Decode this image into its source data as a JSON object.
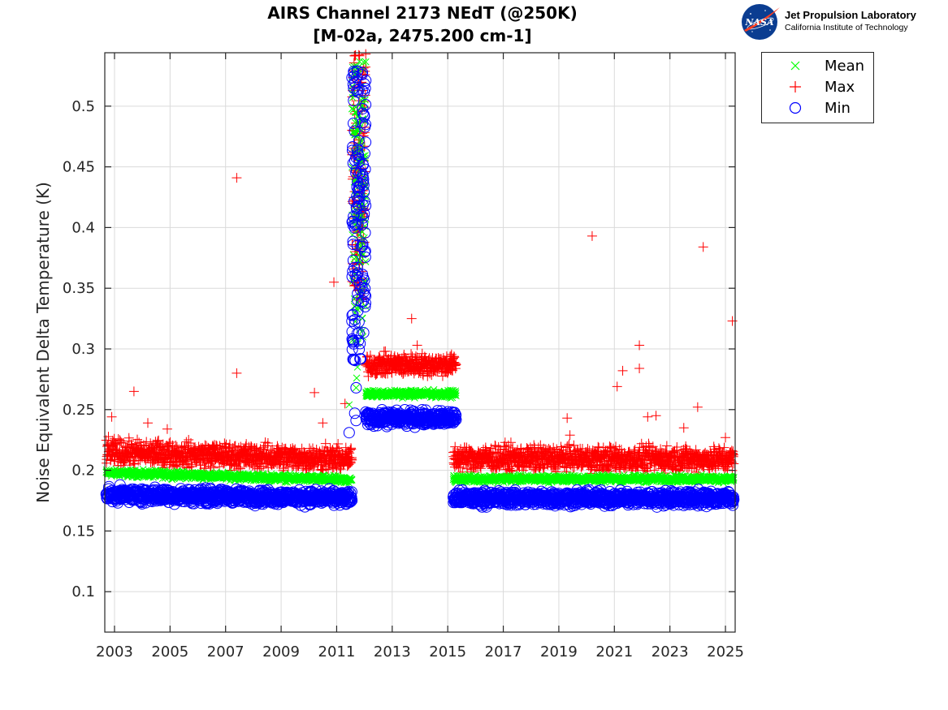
{
  "header": {
    "title_line1": "AIRS Channel 2173 NEdT (@250K)",
    "title_line2": "[M-02a, 2475.200 cm-1]",
    "logo_org": "Jet Propulsion Laboratory",
    "logo_sub": "California Institute of Technology",
    "logo_mark": "NASA"
  },
  "colors": {
    "mean": "#00ff00",
    "max": "#ff0000",
    "min": "#0000ff",
    "grid": "#dadada",
    "axis": "#262626"
  },
  "chart_data": {
    "type": "scatter",
    "title": "AIRS Channel 2173 NEdT (@250K) [M-02a, 2475.200 cm-1]",
    "xlabel": "",
    "ylabel": "Noise Equivalent Delta Temperature (K)",
    "xlim": [
      2002.65,
      2025.35
    ],
    "ylim": [
      0.0667,
      0.544
    ],
    "grid": true,
    "legend_position": "outside-top-right",
    "x_ticks": [
      2003,
      2005,
      2007,
      2009,
      2011,
      2013,
      2015,
      2017,
      2019,
      2021,
      2023,
      2025
    ],
    "x_tick_labels": [
      "2003",
      "2005",
      "2007",
      "2009",
      "2011",
      "2013",
      "2015",
      "2017",
      "2019",
      "2021",
      "2023",
      "2025"
    ],
    "y_ticks": [
      0.1,
      0.15,
      0.2,
      0.25,
      0.3,
      0.35,
      0.4,
      0.45,
      0.5
    ],
    "y_tick_labels": [
      "0.1",
      "0.15",
      "0.2",
      "0.25",
      "0.3",
      "0.35",
      "0.4",
      "0.45",
      "0.5"
    ],
    "legend": [
      "Mean",
      "Max",
      "Min"
    ],
    "series": [
      {
        "name": "Mean",
        "marker": "x",
        "segments": [
          {
            "x_start": 2002.7,
            "x_end": 2011.55,
            "y_start": 0.198,
            "y_end": 0.192,
            "spread": 0.002
          },
          {
            "x_start": 2012.05,
            "x_end": 2015.3,
            "y_start": 0.263,
            "y_end": 0.263,
            "spread": 0.002
          },
          {
            "x_start": 2015.2,
            "x_end": 2025.3,
            "y_start": 0.193,
            "y_end": 0.193,
            "spread": 0.002
          }
        ],
        "points": [
          [
            2011.45,
            0.254
          ],
          [
            2011.7,
            0.268
          ],
          [
            2011.72,
            0.276
          ],
          [
            2011.75,
            0.285
          ]
        ]
      },
      {
        "name": "Max",
        "marker": "+",
        "segments": [
          {
            "x_start": 2002.7,
            "x_end": 2011.55,
            "y_start": 0.215,
            "y_end": 0.209,
            "spread": 0.007
          },
          {
            "x_start": 2012.05,
            "x_end": 2015.3,
            "y_start": 0.287,
            "y_end": 0.287,
            "spread": 0.006
          },
          {
            "x_start": 2015.2,
            "x_end": 2025.3,
            "y_start": 0.21,
            "y_end": 0.209,
            "spread": 0.007
          }
        ],
        "points": [
          [
            2002.9,
            0.244
          ],
          [
            2003.7,
            0.265
          ],
          [
            2004.2,
            0.239
          ],
          [
            2004.9,
            0.234
          ],
          [
            2007.4,
            0.441
          ],
          [
            2007.4,
            0.28
          ],
          [
            2010.2,
            0.264
          ],
          [
            2010.5,
            0.239
          ],
          [
            2010.6,
            0.222
          ],
          [
            2010.9,
            0.355
          ],
          [
            2011.3,
            0.255
          ],
          [
            2013.7,
            0.325
          ],
          [
            2013.9,
            0.303
          ],
          [
            2019.3,
            0.243
          ],
          [
            2019.4,
            0.229
          ],
          [
            2020.2,
            0.393
          ],
          [
            2021.1,
            0.269
          ],
          [
            2021.3,
            0.282
          ],
          [
            2021.9,
            0.303
          ],
          [
            2021.9,
            0.284
          ],
          [
            2022.2,
            0.244
          ],
          [
            2022.5,
            0.245
          ],
          [
            2023.5,
            0.235
          ],
          [
            2024.0,
            0.252
          ],
          [
            2024.2,
            0.384
          ],
          [
            2025.0,
            0.227
          ],
          [
            2025.25,
            0.323
          ],
          [
            2011.9,
            0.4
          ]
        ]
      },
      {
        "name": "Min",
        "marker": "o",
        "segments": [
          {
            "x_start": 2002.7,
            "x_end": 2011.55,
            "y_start": 0.18,
            "y_end": 0.177,
            "spread": 0.004
          },
          {
            "x_start": 2012.05,
            "x_end": 2015.3,
            "y_start": 0.243,
            "y_end": 0.243,
            "spread": 0.004
          },
          {
            "x_start": 2015.2,
            "x_end": 2025.3,
            "y_start": 0.177,
            "y_end": 0.177,
            "spread": 0.004
          }
        ],
        "points": [
          [
            2011.45,
            0.231
          ],
          [
            2011.65,
            0.247
          ],
          [
            2011.7,
            0.268
          ],
          [
            2011.7,
            0.241
          ]
        ]
      }
    ],
    "spike": {
      "x_start": 2011.45,
      "x_end": 2012.1,
      "mean_range": [
        0.3,
        0.54
      ],
      "max_range": [
        0.34,
        0.544
      ],
      "min_range": [
        0.29,
        0.53
      ]
    }
  }
}
